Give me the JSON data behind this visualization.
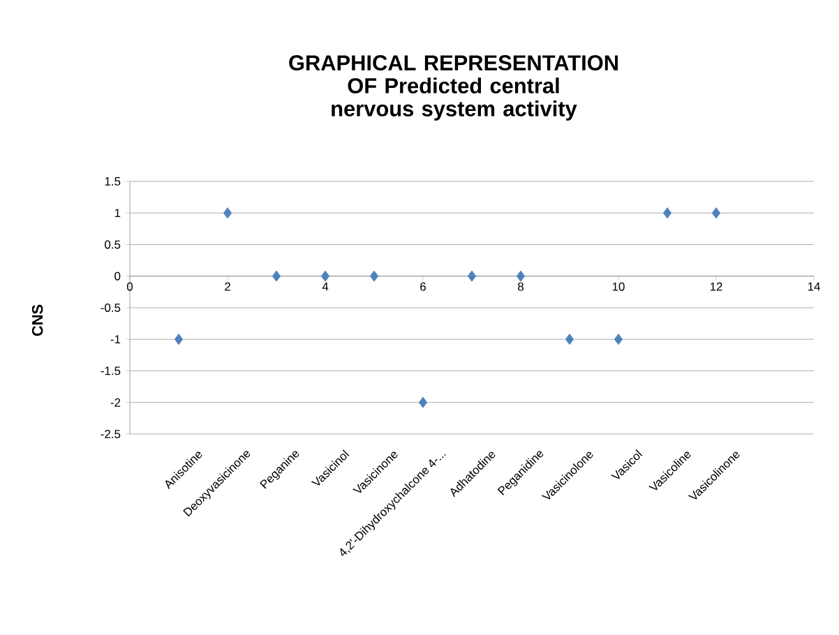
{
  "chart_data": {
    "type": "scatter",
    "title": "GRAPHICAL REPRESENTATION OF Predicted central nervous system activity",
    "ylabel": "CNS",
    "x": [
      1,
      2,
      3,
      4,
      5,
      6,
      7,
      8,
      9,
      10,
      11,
      12
    ],
    "values": [
      -1,
      1,
      0,
      0,
      0,
      -2,
      0,
      0,
      -1,
      -1,
      1,
      1
    ],
    "color": "#4f81bd",
    "marker": "diamond",
    "grid": "y",
    "xlim": [
      0,
      14
    ],
    "xticks": [
      0,
      2,
      4,
      6,
      8,
      10,
      12,
      14
    ],
    "ylim": [
      -2.5,
      1.5
    ],
    "yticks": [
      -2.5,
      -2,
      -1.5,
      -1,
      -0.5,
      0,
      0.5,
      1,
      1.5
    ],
    "annotations": [
      "Anisotine",
      "Deoxyvasicinone",
      "Peganine",
      "Vasicinol",
      "Vasicinone",
      "4,2'-Dihydroxychalcone 4-...",
      "Adhatodine",
      "Peganidine",
      "Vasicinolone",
      "Vasicol",
      "Vasicoline",
      "Vasicolinone"
    ]
  }
}
